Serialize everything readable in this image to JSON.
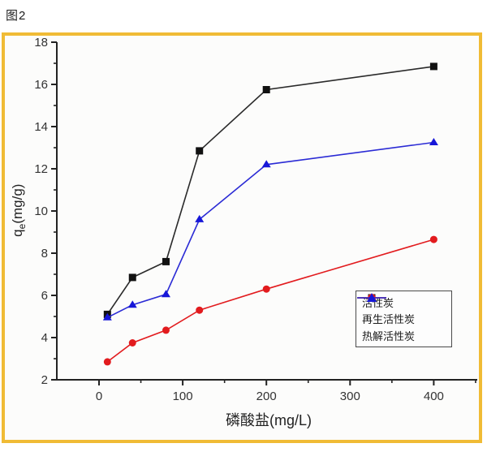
{
  "figure_label": "图2",
  "frame": {
    "border_color": "#F0BB35"
  },
  "ylabel_parts": {
    "main": "q",
    "sub": "e",
    "rest": "(mg/g)"
  },
  "chart_data": {
    "type": "line",
    "title": "",
    "xlabel": "磷酸盐(mg/L)",
    "ylabel": "qe(mg/g)",
    "x": [
      10,
      40,
      80,
      120,
      200,
      400
    ],
    "series": [
      {
        "name": "活性炭",
        "color": "#2a2a2a",
        "marker": "square",
        "marker_color": "#111111",
        "values": [
          5.1,
          6.85,
          7.6,
          12.85,
          15.75,
          16.85
        ]
      },
      {
        "name": "再生活性炭",
        "color": "#e21b1e",
        "marker": "circle",
        "marker_color": "#e21b1e",
        "values": [
          2.85,
          3.75,
          4.35,
          5.3,
          6.3,
          8.65
        ]
      },
      {
        "name": "热解活性炭",
        "color": "#2b2bd5",
        "marker": "triangle-up",
        "marker_color": "#1717d8",
        "values": [
          4.95,
          5.55,
          6.05,
          9.6,
          12.2,
          13.25
        ]
      }
    ],
    "x_ticks": [
      0,
      100,
      200,
      300,
      400
    ],
    "y_ticks": [
      2,
      4,
      6,
      8,
      10,
      12,
      14,
      16,
      18
    ],
    "x_minor_ticks": [
      50,
      150,
      250,
      350,
      450
    ],
    "y_minor_ticks": [
      3,
      5,
      7,
      9,
      11,
      13,
      15,
      17
    ],
    "xlim": [
      -50,
      450
    ],
    "ylim": [
      2,
      18
    ],
    "grid": false,
    "legend_position": "lower-right-inside",
    "tick_label_color": "#333333",
    "axis_color": "#222222"
  }
}
